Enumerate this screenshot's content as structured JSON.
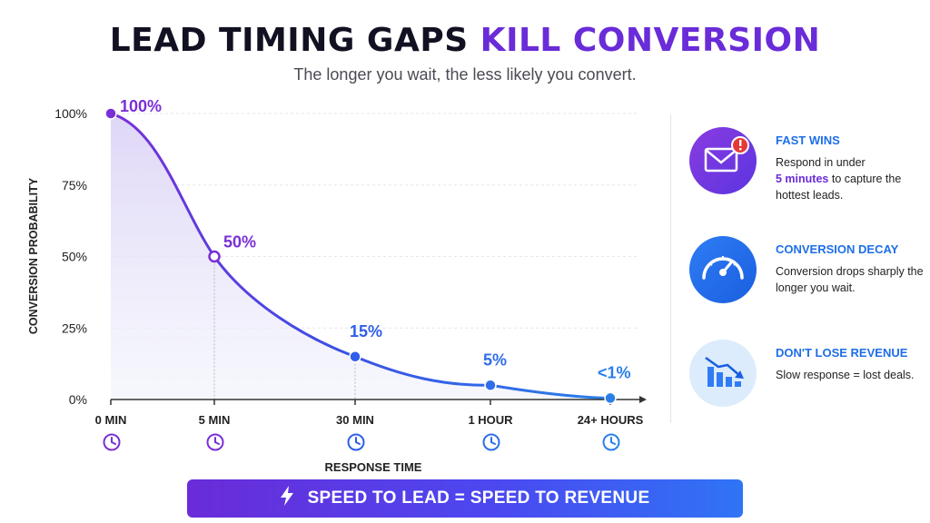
{
  "title": {
    "part1": "LEAD TIMING GAPS ",
    "part2": "KILL CONVERSION"
  },
  "subtitle": "The longer you wait, the less likely you convert.",
  "chart_data": {
    "type": "line",
    "ylabel": "CONVERSION PROBABILITY",
    "xlabel": "RESPONSE TIME",
    "ylim": [
      0,
      100
    ],
    "y_ticks": [
      "100%",
      "75%",
      "50%",
      "25%",
      "0%"
    ],
    "categories": [
      "0 MIN",
      "5 MIN",
      "30 MIN",
      "1 HOUR",
      "24+ HOURS"
    ],
    "values": [
      100,
      50,
      15,
      5,
      0.5
    ],
    "data_labels": [
      "100%",
      "50%",
      "15%",
      "5%",
      "<1%"
    ],
    "grid": true,
    "colors": [
      "#7a2fd6",
      "#7a2fd6",
      "#2f5ee8",
      "#2f6ee8",
      "#2a7fe8"
    ]
  },
  "sidebar": {
    "cards": [
      {
        "icon": "envelope-alert-icon",
        "title": "FAST WINS",
        "body_pre": "Respond in under",
        "body_hl": "5 minutes",
        "body_post": "to capture the hottest leads."
      },
      {
        "icon": "speedometer-icon",
        "title": "CONVERSION DECAY",
        "body_pre": "Conversion drops sharply the longer you wait.",
        "body_hl": "",
        "body_post": ""
      },
      {
        "icon": "declining-bars-icon",
        "title": "DON'T LOSE REVENUE",
        "body_pre": "Slow response = lost deals.",
        "body_hl": "",
        "body_post": ""
      }
    ]
  },
  "banner": {
    "icon": "lightning-bolt-icon",
    "text": "SPEED TO LEAD = SPEED TO REVENUE"
  }
}
